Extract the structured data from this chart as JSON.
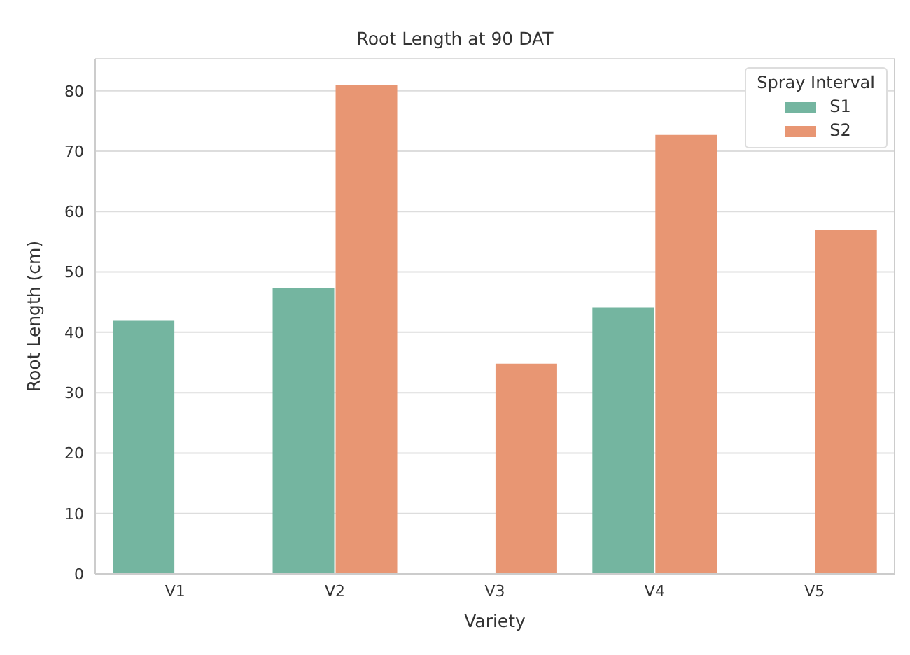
{
  "chart_data": {
    "type": "bar",
    "title": "Root Length at 90 DAT",
    "xlabel": "Variety",
    "ylabel": "Root Length (cm)",
    "legend_title": "Spray Interval",
    "categories": [
      "V1",
      "V2",
      "V3",
      "V4",
      "V5"
    ],
    "series": [
      {
        "name": "S1",
        "color": "#74b5a0",
        "values": [
          42,
          47.4,
          null,
          44.1,
          null
        ]
      },
      {
        "name": "S2",
        "color": "#e89673",
        "values": [
          null,
          80.9,
          34.8,
          72.7,
          57
        ]
      }
    ],
    "ylim": [
      0,
      85.3
    ],
    "yticks": [
      0,
      10,
      20,
      30,
      40,
      50,
      60,
      70,
      80
    ],
    "grid": "y",
    "legend": "top right"
  }
}
